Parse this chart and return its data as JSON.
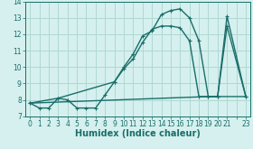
{
  "xlabel": "Humidex (Indice chaleur)",
  "background_color": "#d5f0ee",
  "grid_color": "#b0d8d4",
  "line_color": "#1a6e6a",
  "xlim": [
    -0.5,
    23.5
  ],
  "ylim": [
    7.0,
    14.0
  ],
  "yticks": [
    7,
    8,
    9,
    10,
    11,
    12,
    13,
    14
  ],
  "xtick_labels": [
    "0",
    "1",
    "2",
    "3",
    "4",
    "5",
    "6",
    "7",
    "8",
    "9",
    "10",
    "11",
    "12",
    "13",
    "14",
    "15",
    "16",
    "17",
    "18",
    "19",
    "20",
    "21",
    "",
    "23"
  ],
  "xtick_vals": [
    0,
    1,
    2,
    3,
    4,
    5,
    6,
    7,
    8,
    9,
    10,
    11,
    12,
    13,
    14,
    15,
    16,
    17,
    18,
    19,
    20,
    21,
    22,
    23
  ],
  "series1_x": [
    0,
    1,
    2,
    3,
    4,
    5,
    6,
    7,
    8,
    9,
    10,
    11,
    12,
    13,
    14,
    15,
    16,
    17,
    18,
    19,
    20,
    21,
    23
  ],
  "series1_y": [
    7.8,
    7.5,
    7.5,
    8.1,
    8.0,
    7.5,
    7.5,
    7.5,
    8.3,
    9.1,
    10.0,
    10.8,
    11.9,
    12.2,
    13.2,
    13.45,
    13.55,
    13.0,
    11.6,
    8.2,
    8.2,
    13.1,
    8.2
  ],
  "series2_x": [
    0,
    3,
    9,
    10,
    11,
    12,
    13,
    14,
    15,
    16,
    17,
    18,
    19,
    20,
    21,
    23
  ],
  "series2_y": [
    7.8,
    8.1,
    9.1,
    9.9,
    10.5,
    11.5,
    12.3,
    12.5,
    12.5,
    12.4,
    11.6,
    8.2,
    8.2,
    8.2,
    12.5,
    8.2
  ],
  "series3_x": [
    0,
    19,
    23
  ],
  "series3_y": [
    7.8,
    8.2,
    8.2
  ],
  "marker_size": 2.5,
  "line_width": 1.0,
  "tick_fontsize": 5.5,
  "label_fontsize": 7
}
